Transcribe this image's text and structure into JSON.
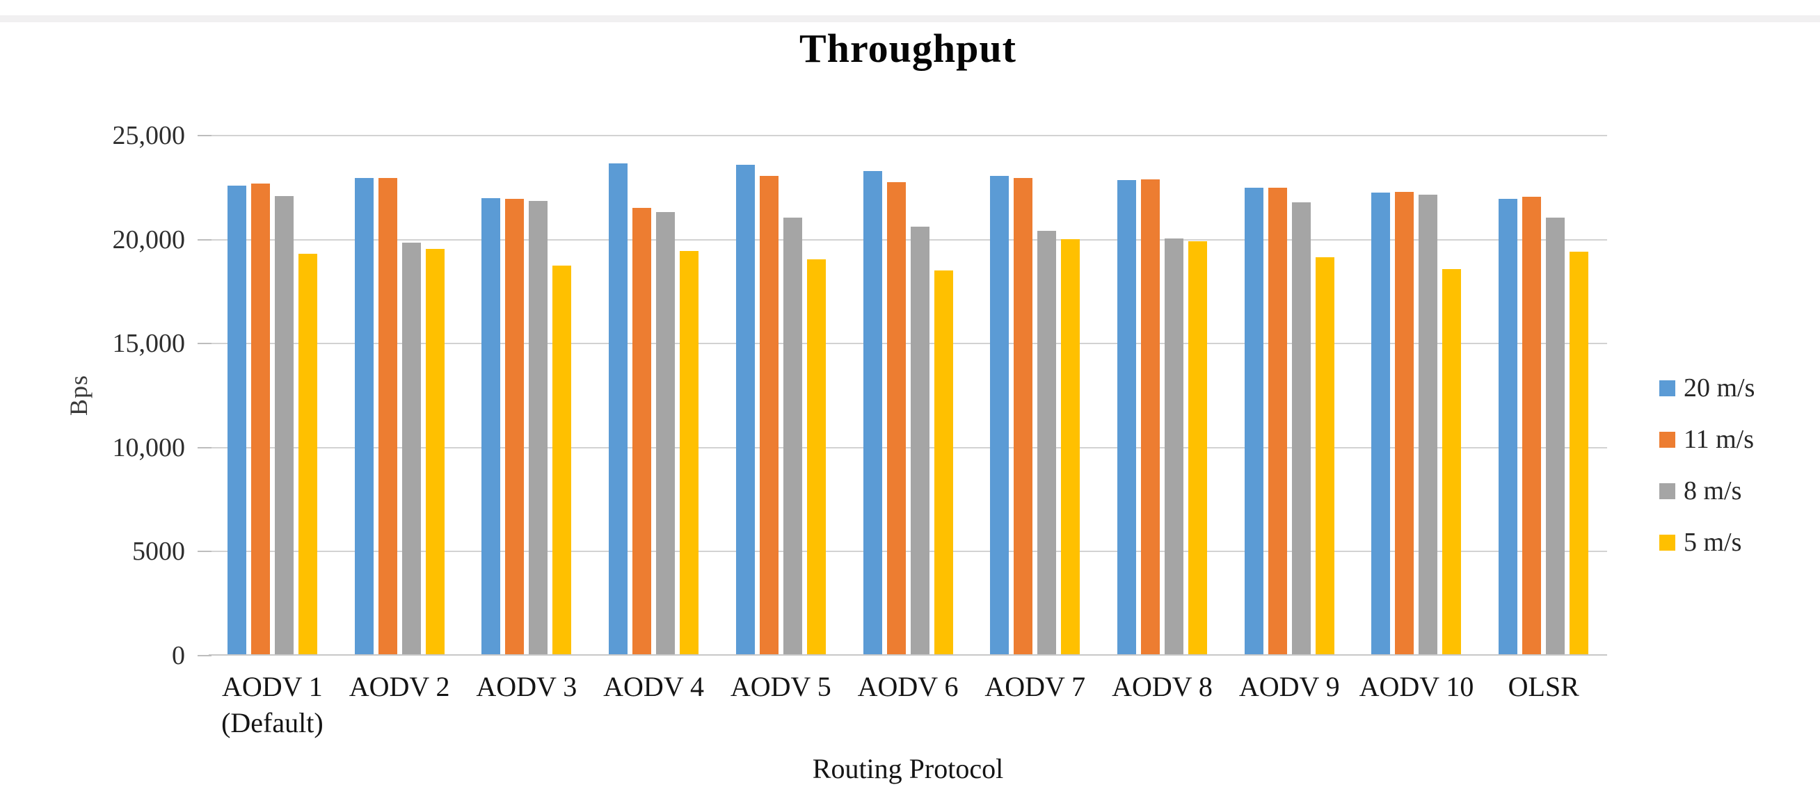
{
  "chart_data": {
    "type": "bar",
    "title": "Throughput",
    "xlabel": "Routing Protocol",
    "ylabel": "Bps",
    "ylim": [
      0,
      25000
    ],
    "grid": true,
    "legend_position": "right",
    "yticks": [
      {
        "value": 0,
        "label": "0"
      },
      {
        "value": 5000,
        "label": "5000"
      },
      {
        "value": 10000,
        "label": "10,000"
      },
      {
        "value": 15000,
        "label": "15,000"
      },
      {
        "value": 20000,
        "label": "20,000"
      },
      {
        "value": 25000,
        "label": "25,000"
      }
    ],
    "categories": [
      "AODV 1\n(Default)",
      "AODV 2",
      "AODV 3",
      "AODV 4",
      "AODV 5",
      "AODV 6",
      "AODV 7",
      "AODV 8",
      "AODV 9",
      "AODV 10",
      "OLSR"
    ],
    "series": [
      {
        "name": "20 m/s",
        "color": "#5B9BD5",
        "values": [
          22600,
          22950,
          22000,
          23650,
          23600,
          23300,
          23050,
          22850,
          22500,
          22250,
          21950
        ]
      },
      {
        "name": "11 m/s",
        "color": "#ED7D31",
        "values": [
          22700,
          22950,
          21950,
          21500,
          23050,
          22750,
          22950,
          22900,
          22500,
          22300,
          22050
        ]
      },
      {
        "name": "8 m/s",
        "color": "#A5A5A5",
        "values": [
          22100,
          19850,
          21850,
          21300,
          21050,
          20600,
          20400,
          20050,
          21800,
          22150,
          21050
        ]
      },
      {
        "name": "5 m/s",
        "color": "#FFC000",
        "values": [
          19300,
          19550,
          18750,
          19450,
          19050,
          18500,
          20000,
          19900,
          19150,
          18550,
          19400
        ]
      }
    ]
  }
}
